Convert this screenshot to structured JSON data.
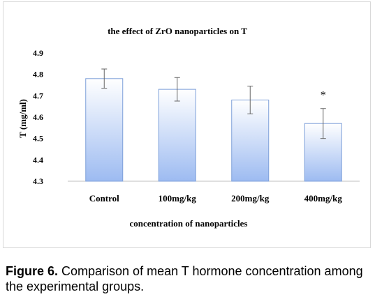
{
  "chart_data": {
    "type": "bar",
    "title": "the effect of ZrO  nanoparticles  on T",
    "xlabel": "concentration  of nanoparticles",
    "ylabel": "T (mg/ml)",
    "ylim": [
      4.3,
      4.9
    ],
    "yticks": [
      "4.3",
      "4.4",
      "4.5",
      "4.6",
      "4.7",
      "4.8",
      "4.9"
    ],
    "grid": false,
    "categories": [
      "Control",
      "100mg/kg",
      "200mg/kg",
      "400mg/kg"
    ],
    "values": [
      4.78,
      4.73,
      4.68,
      4.57
    ],
    "errors": [
      0.045,
      0.055,
      0.065,
      0.07
    ],
    "annotations": [
      "",
      "",
      "",
      "*"
    ],
    "bar_gradient": [
      "#ffffff",
      "#9dbbf1"
    ],
    "bar_border": "#7d9fd9"
  },
  "caption": {
    "label": "Figure 6.",
    "text": " Comparison of mean T hormone concentration among the experimental groups."
  }
}
